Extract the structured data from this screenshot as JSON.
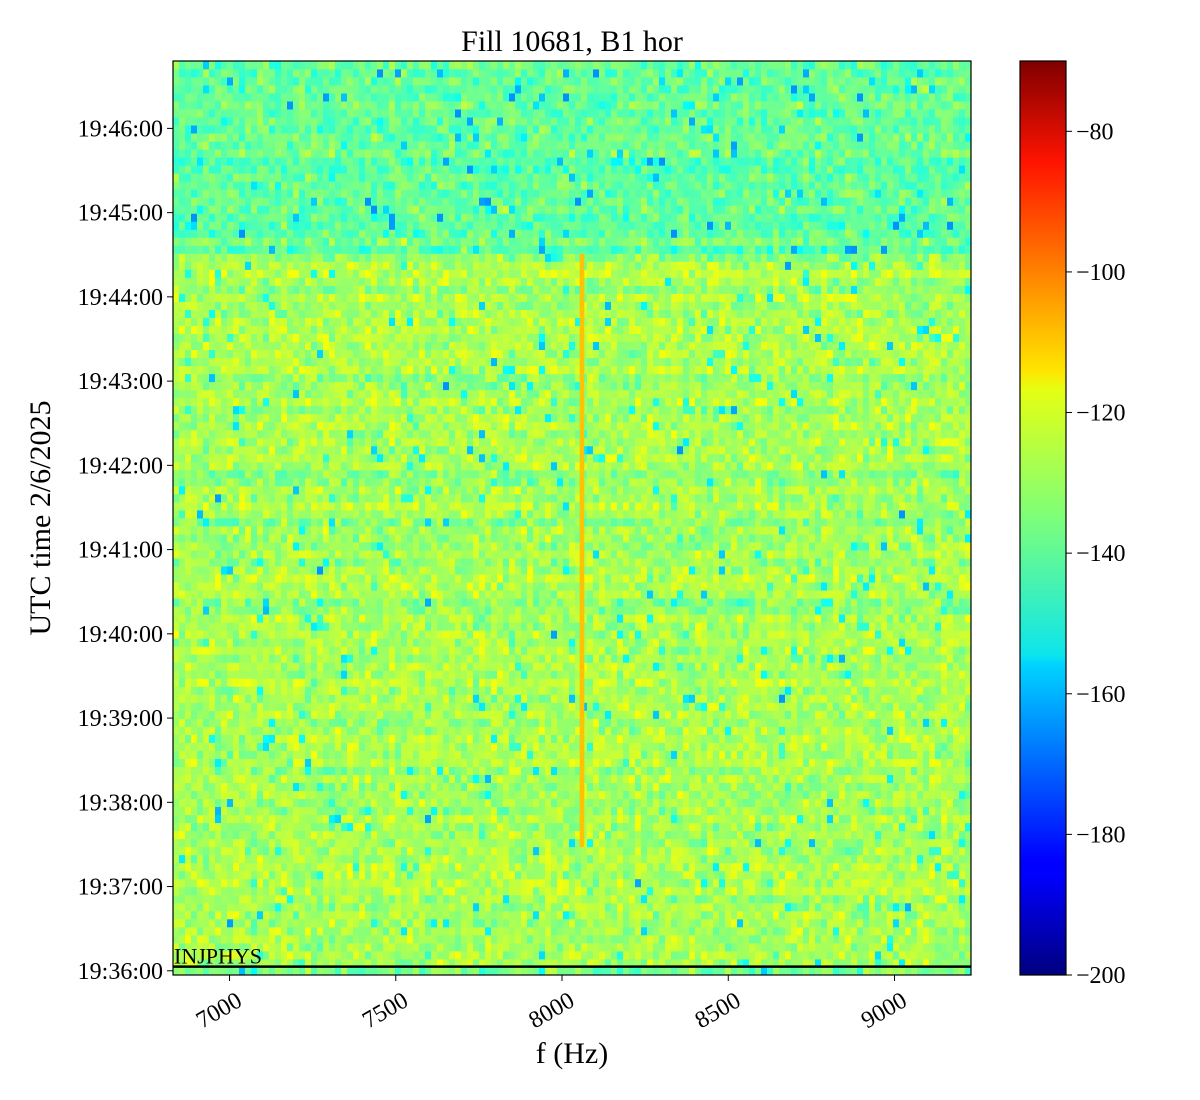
{
  "chart_data": {
    "type": "heatmap",
    "title": "Fill 10681, B1 hor",
    "xlabel": "f (Hz)",
    "ylabel": "UTC time 2/6/2025",
    "xlim": [
      6830,
      9230
    ],
    "ylim_minutes": [
      -0.05,
      10.8
    ],
    "x_ticks": [
      7000,
      7500,
      8000,
      8500,
      9000
    ],
    "x_tick_labels": [
      "7000",
      "7500",
      "8000",
      "8500",
      "9000"
    ],
    "y_ticks": [
      0,
      1,
      2,
      3,
      4,
      5,
      6,
      7,
      8,
      9,
      10
    ],
    "y_tick_labels": [
      "19:36:00",
      "19:37:00",
      "19:38:00",
      "19:39:00",
      "19:40:00",
      "19:41:00",
      "19:42:00",
      "19:43:00",
      "19:44:00",
      "19:45:00",
      "19:46:00"
    ],
    "colorbar": {
      "colormap": "jet",
      "min": -200,
      "max": -70,
      "ticks": [
        -200,
        -180,
        -160,
        -140,
        -120,
        -100,
        -80
      ],
      "tick_labels": [
        "−200",
        "−180",
        "−160",
        "−140",
        "−120",
        "−100",
        "−80"
      ]
    },
    "regions": [
      {
        "t_start_minutes": 0,
        "t_end_minutes": 8.55,
        "level_db": -130
      },
      {
        "t_start_minutes": 8.55,
        "t_end_minutes": 10.8,
        "level_db": -138
      }
    ],
    "noise_range_db": [
      -165,
      -120
    ],
    "line": {
      "frequency_hz": 8060,
      "t_start_minutes": 1.5,
      "t_end_minutes": 8.55,
      "peak_db": -103,
      "peak_t_minutes": 4.45,
      "typical_db": -115
    },
    "marker": {
      "label": "INJPHYS",
      "t_minutes": 0.05
    }
  }
}
